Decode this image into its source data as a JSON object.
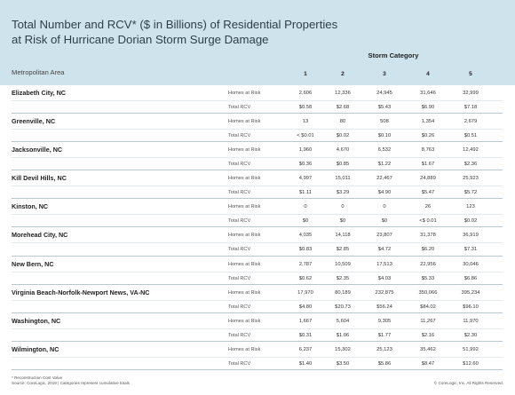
{
  "title_lines": [
    "Total Number and RCV* ($ in Billions) of Residential Properties",
    "at Risk of Hurricane Dorian Storm Surge Damage"
  ],
  "header": {
    "storm_category": "Storm Category",
    "metro_area": "Metropolitan Area",
    "categories": [
      "1",
      "2",
      "3",
      "4",
      "5"
    ]
  },
  "metric_labels": {
    "homes": "Homes at Risk",
    "rcv": "Total RCV"
  },
  "rows": [
    {
      "city": "Elizabeth City, NC",
      "homes": [
        "2,606",
        "12,336",
        "24,945",
        "31,646",
        "32,999"
      ],
      "rcv": [
        "$0.58",
        "$2.68",
        "$5.43",
        "$6.90",
        "$7.18"
      ]
    },
    {
      "city": "Greenville, NC",
      "homes": [
        "13",
        "80",
        "508",
        "1,354",
        "2,679"
      ],
      "rcv": [
        "< $0.01",
        "$0.02",
        "$0.10",
        "$0.26",
        "$0.51"
      ]
    },
    {
      "city": "Jacksonville, NC",
      "homes": [
        "1,960",
        "4,670",
        "6,532",
        "8,763",
        "12,492"
      ],
      "rcv": [
        "$0.36",
        "$0.85",
        "$1.22",
        "$1.67",
        "$2.36"
      ]
    },
    {
      "city": "Kill Devil Hills, NC",
      "homes": [
        "4,997",
        "15,011",
        "22,467",
        "24,889",
        "25,923"
      ],
      "rcv": [
        "$1.11",
        "$3.29",
        "$4.90",
        "$5.47",
        "$5.72"
      ]
    },
    {
      "city": "Kinston, NC",
      "homes": [
        "0",
        "0",
        "0",
        "26",
        "123"
      ],
      "rcv": [
        "$0",
        "$0",
        "$0",
        "<$ 0.01",
        "$0.02"
      ]
    },
    {
      "city": "Morehead City, NC",
      "homes": [
        "4,035",
        "14,118",
        "23,807",
        "31,378",
        "36,919"
      ],
      "rcv": [
        "$0.83",
        "$2.85",
        "$4.72",
        "$6.20",
        "$7.31"
      ]
    },
    {
      "city": "New Bern, NC",
      "homes": [
        "2,787",
        "10,509",
        "17,513",
        "22,956",
        "30,046"
      ],
      "rcv": [
        "$0.62",
        "$2.35",
        "$4.03",
        "$5.33",
        "$6.86"
      ]
    },
    {
      "city": "Virginia Beach-Norfolk-Newport News, VA-NC",
      "homes": [
        "17,970",
        "80,189",
        "232,875",
        "350,066",
        "395,234"
      ],
      "rcv": [
        "$4.80",
        "$20.73",
        "$56.24",
        "$84.02",
        "$96.10"
      ]
    },
    {
      "city": "Washington, NC",
      "homes": [
        "1,667",
        "5,604",
        "9,305",
        "11,267",
        "11,970"
      ],
      "rcv": [
        "$0.31",
        "$1.06",
        "$1.77",
        "$2.16",
        "$2.30"
      ]
    },
    {
      "city": "Wilmington, NC",
      "homes": [
        "6,237",
        "15,302",
        "25,123",
        "35,462",
        "51,992"
      ],
      "rcv": [
        "$1.40",
        "$3.50",
        "$5.86",
        "$8.47",
        "$12.60"
      ]
    }
  ],
  "footnotes": [
    "* Reconstruction Cost Value",
    "Source: CoreLogic, 2019 | Categories represent cumulative totals"
  ],
  "copyright": "© CoreLogic, Inc. All Rights Reserved.",
  "colors": {
    "header_band": "#cfe3ec",
    "divider": "#b9c7cf"
  }
}
